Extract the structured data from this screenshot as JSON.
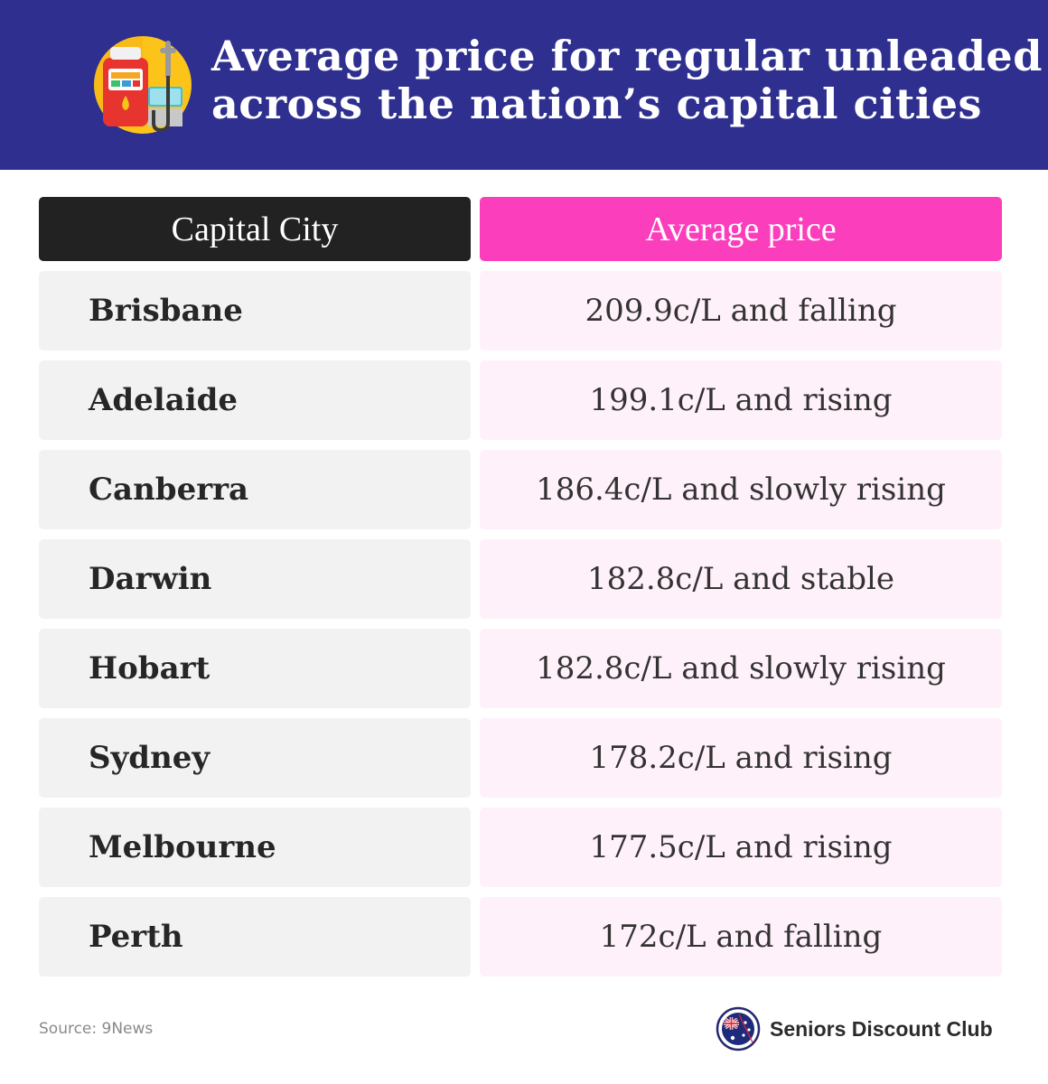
{
  "header": {
    "title_line1": "Average price for regular unleaded",
    "title_line2": "across the nation’s capital cities",
    "icon": "fuel-pump-icon",
    "background": "#2e2f8f"
  },
  "table": {
    "columns": [
      "Capital City",
      "Average price"
    ],
    "column_colors": [
      "#222222",
      "#fb3fbc"
    ],
    "rows": [
      {
        "city": "Brisbane",
        "price": "209.9c/L and falling"
      },
      {
        "city": "Adelaide",
        "price": "199.1c/L and rising"
      },
      {
        "city": "Canberra",
        "price": "186.4c/L and slowly rising"
      },
      {
        "city": "Darwin",
        "price": "182.8c/L and stable"
      },
      {
        "city": "Hobart",
        "price": "182.8c/L and slowly rising"
      },
      {
        "city": "Sydney",
        "price": "178.2c/L and rising"
      },
      {
        "city": "Melbourne",
        "price": "177.5c/L and rising"
      },
      {
        "city": "Perth",
        "price": "172c/L and falling"
      }
    ]
  },
  "footer": {
    "source": "Source: 9News",
    "brand_name": "Seniors Discount Club",
    "brand_icon": "australia-flag-logo-icon"
  }
}
